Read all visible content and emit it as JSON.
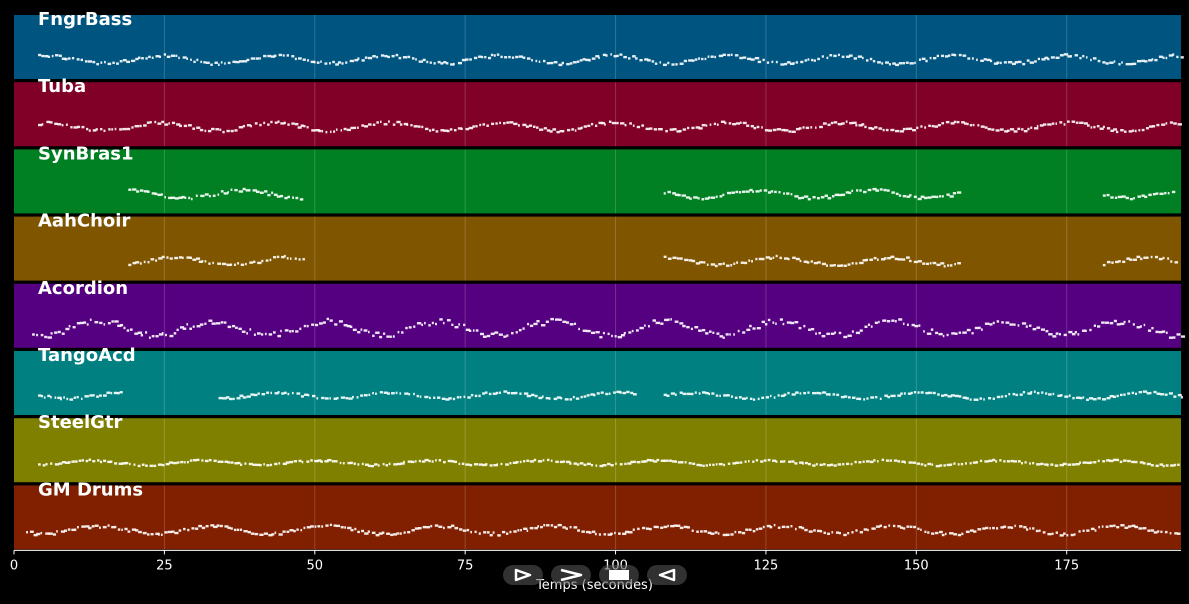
{
  "xaxis": {
    "label": "Temps (secondes)",
    "ticks": [
      0,
      25,
      50,
      75,
      100,
      125,
      150,
      175
    ],
    "tick_labels": [
      "0",
      "25",
      "50",
      "75",
      "100",
      "125",
      "150",
      "175"
    ],
    "range": [
      0,
      194
    ]
  },
  "tracks": [
    {
      "name": "FngrBass",
      "color": "#005580",
      "segments": [
        [
          4,
          194
        ]
      ],
      "spread": 0.1
    },
    {
      "name": "Tuba",
      "color": "#800028",
      "segments": [
        [
          4,
          194
        ]
      ],
      "spread": 0.1
    },
    {
      "name": "SynBras1",
      "color": "#008022",
      "segments": [
        [
          19,
          48
        ],
        [
          108,
          157
        ],
        [
          181,
          193
        ]
      ],
      "spread": 0.1
    },
    {
      "name": "AahChoir",
      "color": "#805500",
      "segments": [
        [
          19,
          48
        ],
        [
          108,
          157
        ],
        [
          181,
          193
        ]
      ],
      "spread": 0.1
    },
    {
      "name": "Acordion",
      "color": "#550080",
      "segments": [
        [
          3,
          194
        ]
      ],
      "spread": 0.18
    },
    {
      "name": "TangoAcd",
      "color": "#008080",
      "segments": [
        [
          4,
          18
        ],
        [
          34,
          103
        ],
        [
          108,
          194
        ]
      ],
      "spread": 0.08
    },
    {
      "name": "SteelGtr",
      "color": "#808000",
      "segments": [
        [
          4,
          194
        ]
      ],
      "spread": 0.06
    },
    {
      "name": "GM Drums",
      "color": "#802000",
      "segments": [
        [
          2,
          194
        ]
      ],
      "spread": 0.1
    }
  ],
  "controls": [
    {
      "name": "play-button",
      "glyph": "play"
    },
    {
      "name": "forward-button",
      "glyph": "forward"
    },
    {
      "name": "stop-button",
      "glyph": "stop"
    },
    {
      "name": "rewind-button",
      "glyph": "rewind"
    }
  ]
}
